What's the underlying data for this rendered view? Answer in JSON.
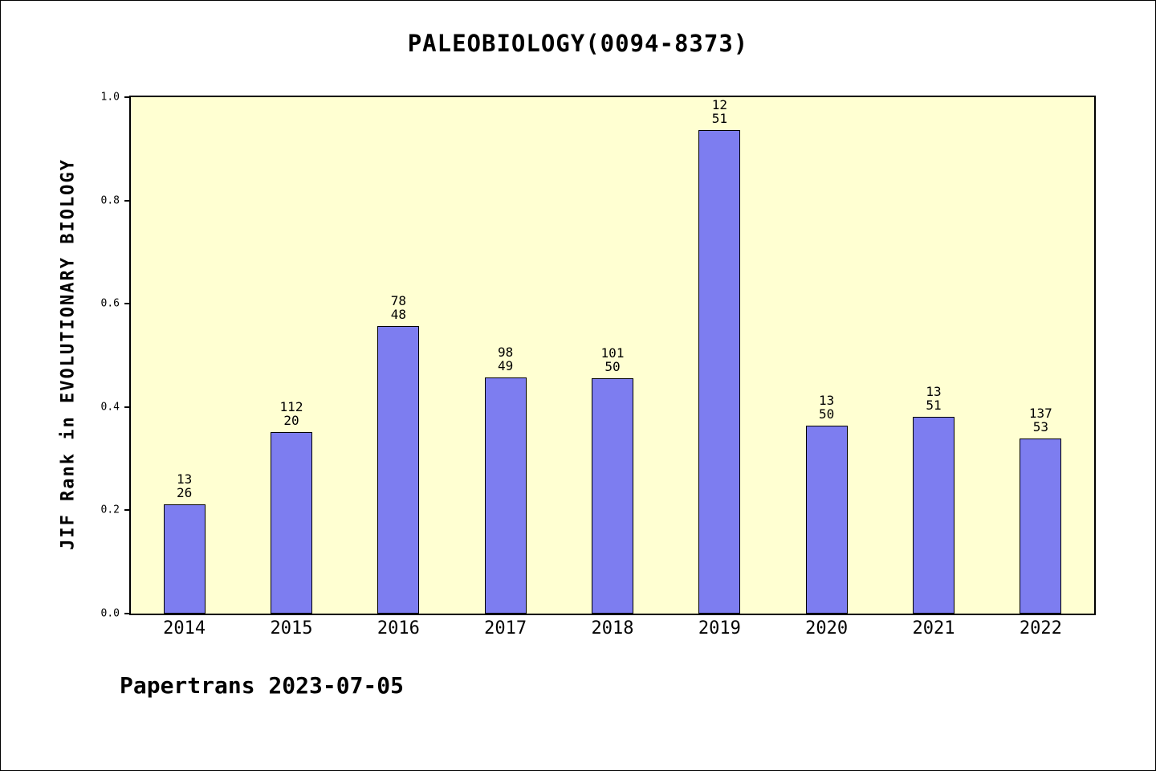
{
  "title": "PALEOBIOLOGY(0094-8373)",
  "footer": "Papertrans 2023-07-05",
  "colors": {
    "bar_fill": "#7d7df0",
    "bar_border": "#000000",
    "plot_background": "#ffffd2",
    "page_background": "#ffffff"
  },
  "chart_data": {
    "type": "bar",
    "title": "PALEOBIOLOGY(0094-8373)",
    "xlabel": "",
    "ylabel": "JIF Rank in EVOLUTIONARY BIOLOGY",
    "categories": [
      "2014",
      "2015",
      "2016",
      "2017",
      "2018",
      "2019",
      "2020",
      "2021",
      "2022"
    ],
    "values": [
      0.212,
      0.352,
      0.556,
      0.458,
      0.456,
      0.936,
      0.364,
      0.381,
      0.339
    ],
    "bar_labels": [
      [
        "13",
        "26"
      ],
      [
        "112",
        "20"
      ],
      [
        "78",
        "48"
      ],
      [
        "98",
        "49"
      ],
      [
        "101",
        "50"
      ],
      [
        "12",
        "51"
      ],
      [
        "13",
        "50"
      ],
      [
        "13",
        "51"
      ],
      [
        "137",
        "53"
      ]
    ],
    "ylim": [
      0.0,
      1.0
    ],
    "yticks": [
      0.0,
      0.2,
      0.4,
      0.6,
      0.8,
      1.0
    ],
    "ytick_labels": [
      "0.0",
      "0.2",
      "0.4",
      "0.6",
      "0.8",
      "1.0"
    ],
    "grid": false,
    "legend": false,
    "annotation": "Papertrans 2023-07-05"
  }
}
